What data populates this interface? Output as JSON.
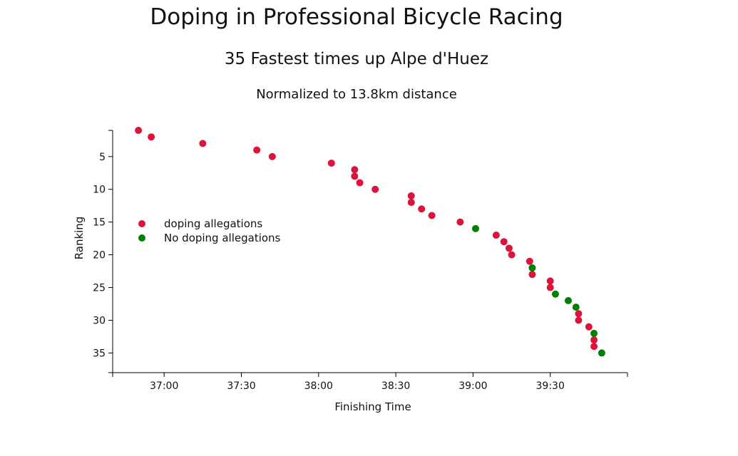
{
  "chart_data": {
    "type": "scatter",
    "title": "Doping in Professional Bicycle Racing",
    "subtitle": "35 Fastest times up Alpe d'Huez",
    "subtitle2": "Normalized to 13.8km distance",
    "xlabel": "Finishing Time",
    "ylabel": "Ranking",
    "x_ticks": [
      "37:00",
      "37:30",
      "38:00",
      "38:30",
      "39:00",
      "39:30"
    ],
    "x_tick_values": [
      "37:00",
      "37:30",
      "38:00",
      "38:30",
      "39:00",
      "39:30"
    ],
    "y_ticks": [
      "5",
      "10",
      "15",
      "20",
      "25",
      "30",
      "35"
    ],
    "y_tick_values": [
      5,
      10,
      15,
      20,
      25,
      30,
      35
    ],
    "xlim": [
      "36:40",
      "40:00"
    ],
    "ylim": [
      1,
      38
    ],
    "y_reversed": true,
    "grid": false,
    "legend_position": "left",
    "series": [
      {
        "name": "doping allegations",
        "color": "#dc143c",
        "points": [
          {
            "time": "36:50",
            "rank": 1
          },
          {
            "time": "36:55",
            "rank": 2
          },
          {
            "time": "37:15",
            "rank": 3
          },
          {
            "time": "37:36",
            "rank": 4
          },
          {
            "time": "37:42",
            "rank": 5
          },
          {
            "time": "38:05",
            "rank": 6
          },
          {
            "time": "38:14",
            "rank": 7
          },
          {
            "time": "38:14",
            "rank": 8
          },
          {
            "time": "38:16",
            "rank": 9
          },
          {
            "time": "38:22",
            "rank": 10
          },
          {
            "time": "38:36",
            "rank": 11
          },
          {
            "time": "38:36",
            "rank": 12
          },
          {
            "time": "38:40",
            "rank": 13
          },
          {
            "time": "38:44",
            "rank": 14
          },
          {
            "time": "38:55",
            "rank": 15
          },
          {
            "time": "39:09",
            "rank": 17
          },
          {
            "time": "39:12",
            "rank": 18
          },
          {
            "time": "39:14",
            "rank": 19
          },
          {
            "time": "39:15",
            "rank": 20
          },
          {
            "time": "39:22",
            "rank": 21
          },
          {
            "time": "39:23",
            "rank": 23
          },
          {
            "time": "39:30",
            "rank": 24
          },
          {
            "time": "39:30",
            "rank": 25
          },
          {
            "time": "39:41",
            "rank": 29
          },
          {
            "time": "39:41",
            "rank": 30
          },
          {
            "time": "39:45",
            "rank": 31
          },
          {
            "time": "39:47",
            "rank": 33
          },
          {
            "time": "39:47",
            "rank": 34
          }
        ]
      },
      {
        "name": "No doping allegations",
        "color": "#008000",
        "points": [
          {
            "time": "39:01",
            "rank": 16
          },
          {
            "time": "39:23",
            "rank": 22
          },
          {
            "time": "39:32",
            "rank": 26
          },
          {
            "time": "39:37",
            "rank": 27
          },
          {
            "time": "39:40",
            "rank": 28
          },
          {
            "time": "39:47",
            "rank": 32
          },
          {
            "time": "39:50",
            "rank": 35
          }
        ]
      }
    ]
  }
}
